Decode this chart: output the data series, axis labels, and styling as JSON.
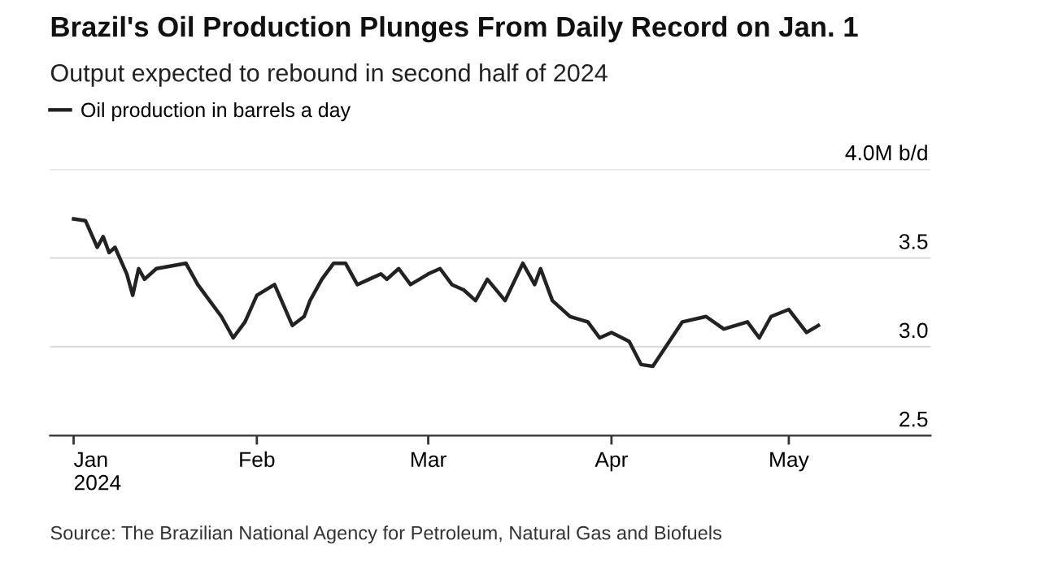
{
  "chart_data": {
    "type": "line",
    "title": "Brazil's Oil Production Plunges From Daily Record on Jan. 1",
    "subtitle": "Output expected to rebound in second half of 2024",
    "x": [
      "2024-01-01",
      "2024-01-03",
      "2024-01-05",
      "2024-01-06",
      "2024-01-07",
      "2024-01-08",
      "2024-01-10",
      "2024-01-11",
      "2024-01-12",
      "2024-01-13",
      "2024-01-15",
      "2024-01-20",
      "2024-01-22",
      "2024-01-24",
      "2024-01-26",
      "2024-01-28",
      "2024-01-30",
      "2024-02-01",
      "2024-02-04",
      "2024-02-07",
      "2024-02-09",
      "2024-02-10",
      "2024-02-12",
      "2024-02-14",
      "2024-02-16",
      "2024-02-18",
      "2024-02-20",
      "2024-02-22",
      "2024-02-23",
      "2024-02-25",
      "2024-02-27",
      "2024-03-01",
      "2024-03-03",
      "2024-03-05",
      "2024-03-07",
      "2024-03-09",
      "2024-03-11",
      "2024-03-14",
      "2024-03-17",
      "2024-03-19",
      "2024-03-20",
      "2024-03-22",
      "2024-03-25",
      "2024-03-28",
      "2024-03-30",
      "2024-04-01",
      "2024-04-04",
      "2024-04-06",
      "2024-04-08",
      "2024-04-09",
      "2024-04-13",
      "2024-04-17",
      "2024-04-20",
      "2024-04-24",
      "2024-04-26",
      "2024-04-28",
      "2024-05-01",
      "2024-05-04",
      "2024-05-06"
    ],
    "series": [
      {
        "name": "Oil production in barrels a day",
        "color": "#222222",
        "values": [
          3.72,
          3.71,
          3.56,
          3.62,
          3.53,
          3.56,
          3.41,
          3.29,
          3.44,
          3.38,
          3.44,
          3.47,
          3.35,
          3.26,
          3.17,
          3.05,
          3.14,
          3.29,
          3.35,
          3.12,
          3.17,
          3.26,
          3.38,
          3.47,
          3.47,
          3.35,
          3.38,
          3.41,
          3.38,
          3.44,
          3.35,
          3.41,
          3.44,
          3.35,
          3.32,
          3.26,
          3.38,
          3.26,
          3.47,
          3.35,
          3.44,
          3.26,
          3.17,
          3.14,
          3.05,
          3.08,
          3.03,
          2.9,
          2.89,
          2.94,
          3.14,
          3.17,
          3.1,
          3.14,
          3.05,
          3.17,
          3.21,
          3.08,
          3.12
        ]
      }
    ],
    "xlim": [
      "2023-12-28",
      "2024-05-25"
    ],
    "xticks": [
      {
        "value": "2024-01-01",
        "label": "Jan\n2024"
      },
      {
        "value": "2024-02-01",
        "label": "Feb"
      },
      {
        "value": "2024-03-01",
        "label": "Mar"
      },
      {
        "value": "2024-04-01",
        "label": "Apr"
      },
      {
        "value": "2024-05-01",
        "label": "May"
      }
    ],
    "ylim": [
      2.5,
      4.0
    ],
    "yticks": [
      2.5,
      {
        "value": 3.0,
        "label": "3.0"
      },
      3.5,
      {
        "value": 4.0,
        "label": "4.0M b/d"
      }
    ],
    "grid": "y",
    "legend": "top left",
    "line_style": "solid",
    "annotations": [
      "Source: The Brazilian National Agency for Petroleum, Natural Gas and Biofuels"
    ]
  }
}
